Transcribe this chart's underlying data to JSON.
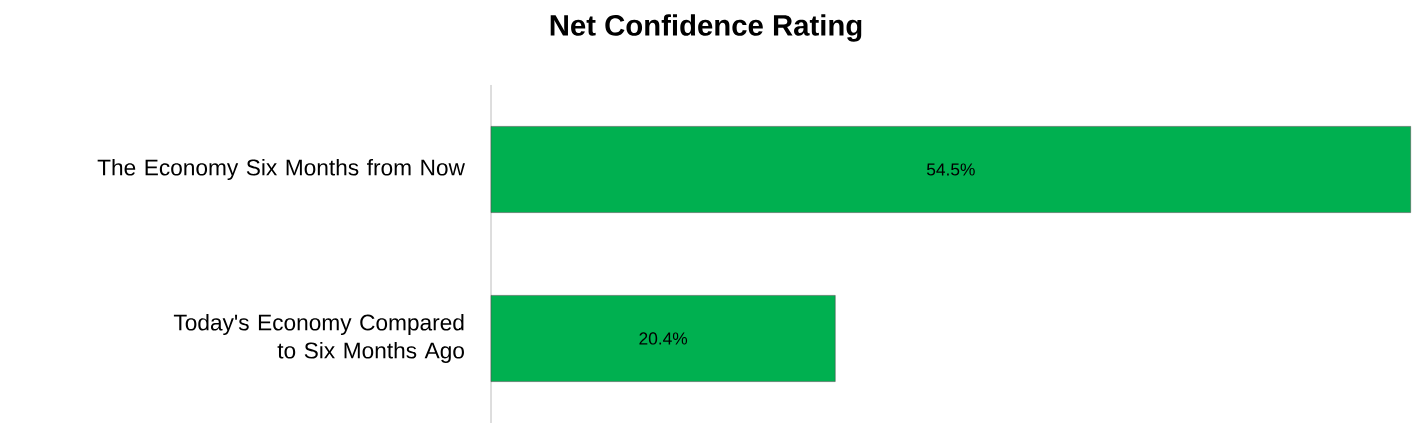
{
  "chart_data": {
    "type": "bar",
    "orientation": "horizontal",
    "title": "Net Confidence Rating",
    "categories": [
      "The Economy Six Months from Now",
      "Today's  Economy Compared to Six Months Ago"
    ],
    "values": [
      54.5,
      20.4
    ],
    "value_labels": [
      "54.5%",
      "20.4%"
    ],
    "color": "#00b050"
  }
}
